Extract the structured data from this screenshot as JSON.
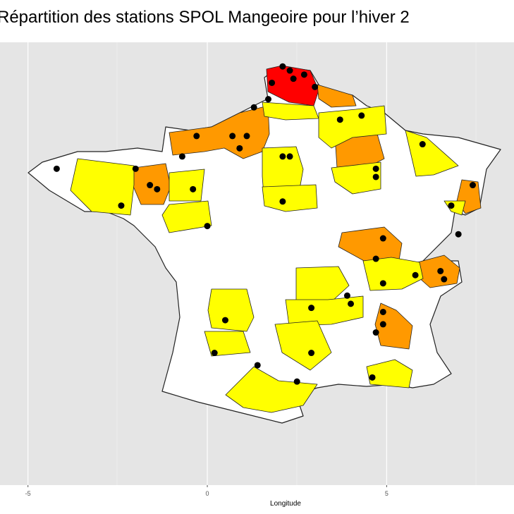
{
  "chart_data": {
    "type": "map",
    "title": "Répartition des stations SPOL Mangeoire pour l’hiver 2",
    "x_label": "Longitude",
    "xlim": [
      -5.78,
      8.55
    ],
    "xticks": [
      -5,
      0,
      5
    ],
    "ylim": [
      40.87,
      51.69
    ],
    "stations": {
      "lon": [
        2.1,
        2.3,
        1.8,
        2.7,
        2.4,
        3.0,
        1.7,
        1.3,
        3.7,
        4.3,
        -0.3,
        0.7,
        1.1,
        -0.7,
        0.9,
        2.1,
        2.3,
        -4.2,
        -2.0,
        -1.6,
        -1.4,
        -0.4,
        -2.4,
        4.7,
        4.7,
        6.0,
        7.4,
        6.8,
        7.0,
        2.1,
        0.0,
        4.9,
        4.7,
        4.9,
        5.8,
        6.5,
        6.6,
        3.9,
        4.0,
        2.9,
        4.9,
        4.9,
        4.7,
        0.5,
        0.2,
        2.9,
        1.4,
        2.5,
        4.6
      ],
      "lat": [
        51.1,
        51.0,
        50.7,
        50.9,
        50.8,
        50.6,
        50.3,
        50.1,
        49.8,
        49.9,
        49.4,
        49.4,
        49.4,
        48.9,
        49.1,
        48.9,
        48.9,
        48.6,
        48.6,
        48.2,
        48.1,
        48.1,
        47.7,
        48.6,
        48.4,
        49.2,
        48.2,
        47.7,
        47.0,
        47.8,
        47.2,
        46.9,
        46.4,
        45.8,
        46.0,
        46.1,
        45.9,
        45.5,
        45.3,
        45.2,
        45.1,
        44.8,
        44.6,
        44.9,
        44.1,
        44.1,
        43.8,
        43.4,
        43.5
      ],
      "color": "#000000"
    }
  }
}
